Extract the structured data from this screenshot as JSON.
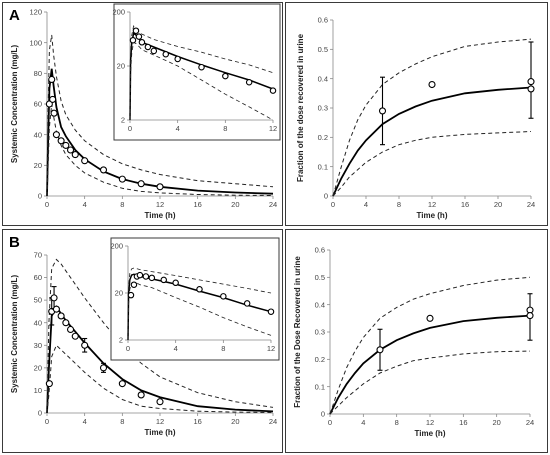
{
  "panels": [
    {
      "letter": "A"
    },
    {
      "letter": "B"
    }
  ],
  "chart_data": [
    {
      "id": "A-conc",
      "type": "line",
      "xlabel": "Time (h)",
      "ylabel": "Systemic Concentration (mg/L)",
      "xlim": [
        0,
        24
      ],
      "ylim": [
        0,
        120
      ],
      "xticks": [
        0,
        4,
        8,
        12,
        16,
        20,
        24
      ],
      "yticks": [
        0,
        20,
        40,
        60,
        80,
        100,
        120
      ],
      "grid": false,
      "series": [
        {
          "role": "observed",
          "style": "open-circle",
          "x": [
            0.25,
            0.5,
            0.6,
            0.75,
            1,
            1.5,
            2,
            2.5,
            3,
            4,
            6,
            8,
            10,
            12
          ],
          "y": [
            60,
            76,
            63,
            54,
            40,
            36,
            33,
            30,
            27,
            23,
            17,
            11,
            8,
            6
          ]
        },
        {
          "role": "median",
          "style": "solid",
          "x": [
            0,
            0.1,
            0.25,
            0.5,
            0.7,
            1,
            1.5,
            2,
            3,
            4,
            6,
            8,
            10,
            12,
            16,
            20,
            24
          ],
          "y": [
            0,
            30,
            70,
            83,
            72,
            58,
            45,
            39,
            30,
            24,
            16,
            11,
            8,
            6,
            3.5,
            2.3,
            1.5
          ]
        },
        {
          "role": "upper",
          "style": "dashed",
          "x": [
            0,
            0.1,
            0.25,
            0.5,
            0.7,
            1,
            1.5,
            2,
            3,
            4,
            6,
            8,
            10,
            12,
            16,
            20,
            24
          ],
          "y": [
            0,
            50,
            95,
            105,
            92,
            78,
            62,
            53,
            43,
            36,
            27,
            21,
            17,
            14,
            10,
            8,
            6
          ]
        },
        {
          "role": "lower",
          "style": "dashed",
          "x": [
            0,
            0.1,
            0.25,
            0.5,
            0.7,
            1,
            1.5,
            2,
            3,
            4,
            6,
            8,
            10,
            12,
            16,
            20,
            24
          ],
          "y": [
            0,
            15,
            45,
            60,
            52,
            42,
            33,
            27,
            20,
            15,
            9,
            5,
            3,
            2,
            1,
            0.5,
            0.3
          ]
        }
      ],
      "inset": {
        "yscale": "log",
        "xlim": [
          0,
          12
        ],
        "ylim": [
          2,
          200
        ],
        "xticks": [
          0,
          4,
          8,
          12
        ],
        "yticks": [
          2,
          20,
          200
        ],
        "series": [
          {
            "role": "observed",
            "style": "open-circle",
            "x": [
              0.25,
              0.5,
              0.75,
              1,
              1.5,
              2,
              3,
              4,
              6,
              8,
              10,
              12
            ],
            "y": [
              60,
              90,
              70,
              55,
              45,
              38,
              33,
              27,
              19,
              13,
              10,
              7
            ]
          },
          {
            "role": "median",
            "style": "solid",
            "x": [
              0,
              0.05,
              0.15,
              0.3,
              0.5,
              0.8,
              1,
              2,
              4,
              6,
              8,
              10,
              12
            ],
            "y": [
              2,
              25,
              55,
              80,
              75,
              62,
              55,
              45,
              30,
              21,
              15,
              11,
              7.5
            ]
          },
          {
            "role": "upper",
            "style": "dashed",
            "x": [
              0,
              0.05,
              0.15,
              0.3,
              0.5,
              0.8,
              1,
              2,
              4,
              6,
              8,
              10,
              12
            ],
            "y": [
              2,
              35,
              75,
              110,
              100,
              85,
              78,
              62,
              46,
              36,
              27,
              21,
              15
            ]
          },
          {
            "role": "lower",
            "style": "dashed",
            "x": [
              0,
              0.05,
              0.15,
              0.3,
              0.5,
              0.8,
              1,
              2,
              4,
              6,
              8,
              10,
              12
            ],
            "y": [
              2,
              15,
              35,
              55,
              52,
              45,
              40,
              32,
              20,
              11,
              6,
              3.5,
              2
            ]
          }
        ]
      }
    },
    {
      "id": "A-urine",
      "type": "line",
      "xlabel": "Time (h)",
      "ylabel": "Fraction of the dose recovered in urine",
      "xlim": [
        0,
        24
      ],
      "ylim": [
        0,
        0.6
      ],
      "xticks": [
        0,
        4,
        8,
        12,
        16,
        20,
        24
      ],
      "yticks": [
        0,
        0.1,
        0.2,
        0.3,
        0.4,
        0.5,
        0.6
      ],
      "grid": false,
      "series": [
        {
          "role": "observed",
          "style": "open-circle",
          "x": [
            6,
            12,
            24,
            24
          ],
          "y": [
            0.29,
            0.38,
            0.39,
            0.365
          ],
          "err_low": [
            0.175,
            null,
            0.265,
            null
          ],
          "err_high": [
            0.405,
            null,
            0.525,
            null
          ]
        },
        {
          "role": "median",
          "style": "solid",
          "x": [
            0,
            1,
            2,
            3,
            4,
            6,
            8,
            10,
            12,
            16,
            20,
            24
          ],
          "y": [
            0,
            0.06,
            0.11,
            0.155,
            0.19,
            0.245,
            0.28,
            0.305,
            0.325,
            0.35,
            0.362,
            0.37
          ]
        },
        {
          "role": "upper",
          "style": "dashed",
          "x": [
            0,
            1,
            2,
            3,
            4,
            6,
            8,
            10,
            12,
            16,
            20,
            24
          ],
          "y": [
            0,
            0.1,
            0.19,
            0.26,
            0.31,
            0.38,
            0.42,
            0.45,
            0.475,
            0.51,
            0.525,
            0.535
          ]
        },
        {
          "role": "lower",
          "style": "dashed",
          "x": [
            0,
            1,
            2,
            3,
            4,
            6,
            8,
            10,
            12,
            16,
            20,
            24
          ],
          "y": [
            0,
            0.03,
            0.065,
            0.09,
            0.115,
            0.15,
            0.175,
            0.19,
            0.2,
            0.21,
            0.215,
            0.22
          ]
        }
      ]
    },
    {
      "id": "B-conc",
      "type": "line",
      "xlabel": "Time (h)",
      "ylabel": "Systemic Concentration (mg/L)",
      "xlim": [
        0,
        24
      ],
      "ylim": [
        0,
        70
      ],
      "xticks": [
        0,
        4,
        8,
        12,
        16,
        20,
        24
      ],
      "yticks": [
        0,
        10,
        20,
        30,
        40,
        50,
        60,
        70
      ],
      "grid": false,
      "series": [
        {
          "role": "observed",
          "style": "open-circle",
          "x": [
            0.25,
            0.5,
            0.75,
            1,
            1.5,
            2,
            2.5,
            3,
            4,
            6,
            8,
            10,
            12
          ],
          "y": [
            13,
            45,
            51,
            46,
            43,
            40,
            37,
            34,
            30,
            20,
            13,
            8,
            5
          ],
          "err_low": [
            null,
            39,
            46,
            null,
            null,
            null,
            null,
            null,
            27,
            18,
            null,
            null,
            null
          ],
          "err_high": [
            null,
            51,
            56,
            null,
            null,
            null,
            null,
            null,
            33,
            22,
            null,
            null,
            null
          ]
        },
        {
          "role": "median",
          "style": "solid",
          "x": [
            0,
            0.2,
            0.5,
            1,
            1.5,
            2,
            3,
            4,
            6,
            8,
            10,
            12,
            16,
            20,
            24
          ],
          "y": [
            0,
            20,
            43,
            47,
            44,
            41,
            36,
            31,
            22,
            15,
            10,
            7,
            3,
            1.5,
            0.7
          ]
        },
        {
          "role": "upper",
          "style": "dashed",
          "x": [
            0,
            0.2,
            0.5,
            1,
            1.5,
            2,
            3,
            4,
            6,
            8,
            10,
            12,
            16,
            20,
            24
          ],
          "y": [
            0,
            40,
            64,
            68,
            66,
            63,
            57,
            51,
            40,
            30,
            22,
            16,
            9,
            5,
            2.5
          ]
        },
        {
          "role": "lower",
          "style": "dashed",
          "x": [
            0,
            0.2,
            0.5,
            1,
            1.5,
            2,
            3,
            4,
            6,
            8,
            10,
            12,
            16,
            20,
            24
          ],
          "y": [
            0,
            8,
            25,
            30,
            28,
            26,
            22,
            18,
            11,
            6,
            3,
            2,
            0.8,
            0.4,
            0.2
          ]
        }
      ],
      "inset": {
        "yscale": "log",
        "xlim": [
          0,
          12
        ],
        "ylim": [
          2,
          200
        ],
        "xticks": [
          0,
          4,
          8,
          12
        ],
        "yticks": [
          2,
          20,
          200
        ],
        "series": [
          {
            "role": "observed",
            "style": "open-circle",
            "x": [
              0.25,
              0.5,
              0.75,
              1,
              1.5,
              2,
              3,
              4,
              6,
              8,
              10,
              12
            ],
            "y": [
              18,
              30,
              45,
              48,
              45,
              42,
              38,
              33,
              24,
              17,
              12,
              8
            ]
          },
          {
            "role": "median",
            "style": "solid",
            "x": [
              0,
              0.05,
              0.15,
              0.3,
              0.5,
              0.8,
              1,
              2,
              4,
              6,
              8,
              10,
              12
            ],
            "y": [
              2,
              20,
              38,
              48,
              50,
              47,
              45,
              40,
              31,
              22,
              16,
              11,
              8
            ]
          },
          {
            "role": "upper",
            "style": "dashed",
            "x": [
              0,
              0.05,
              0.15,
              0.3,
              0.5,
              0.8,
              1,
              2,
              4,
              6,
              8,
              10,
              12
            ],
            "y": [
              2,
              28,
              52,
              65,
              68,
              65,
              63,
              57,
              47,
              38,
              31,
              25,
              20
            ]
          },
          {
            "role": "lower",
            "style": "dashed",
            "x": [
              0,
              0.05,
              0.15,
              0.3,
              0.5,
              0.8,
              1,
              2,
              4,
              6,
              8,
              10,
              12
            ],
            "y": [
              2,
              12,
              24,
              32,
              34,
              32,
              30,
              26,
              16,
              10,
              6,
              3.8,
              2.5
            ]
          }
        ]
      }
    },
    {
      "id": "B-urine",
      "type": "line",
      "xlabel": "Time (h)",
      "ylabel": "Fraction of the Dose Recovered in urine",
      "xlim": [
        0,
        24
      ],
      "ylim": [
        0,
        0.6
      ],
      "xticks": [
        0,
        4,
        8,
        12,
        16,
        20,
        24
      ],
      "yticks": [
        0,
        0.1,
        0.2,
        0.3,
        0.4,
        0.5,
        0.6
      ],
      "grid": false,
      "series": [
        {
          "role": "observed",
          "style": "open-circle",
          "x": [
            6,
            12,
            24,
            24
          ],
          "y": [
            0.235,
            0.35,
            0.38,
            0.36
          ],
          "err_low": [
            0.16,
            null,
            0.27,
            null
          ],
          "err_high": [
            0.31,
            null,
            0.44,
            null
          ]
        },
        {
          "role": "median",
          "style": "solid",
          "x": [
            0,
            1,
            2,
            3,
            4,
            6,
            8,
            10,
            12,
            16,
            20,
            24
          ],
          "y": [
            0,
            0.06,
            0.11,
            0.15,
            0.185,
            0.235,
            0.27,
            0.295,
            0.315,
            0.34,
            0.352,
            0.36
          ]
        },
        {
          "role": "upper",
          "style": "dashed",
          "x": [
            0,
            1,
            2,
            3,
            4,
            6,
            8,
            10,
            12,
            16,
            20,
            24
          ],
          "y": [
            0,
            0.09,
            0.17,
            0.23,
            0.28,
            0.35,
            0.39,
            0.42,
            0.44,
            0.47,
            0.49,
            0.5
          ]
        },
        {
          "role": "lower",
          "style": "dashed",
          "x": [
            0,
            1,
            2,
            3,
            4,
            6,
            8,
            10,
            12,
            16,
            20,
            24
          ],
          "y": [
            0,
            0.03,
            0.06,
            0.085,
            0.11,
            0.15,
            0.175,
            0.195,
            0.205,
            0.22,
            0.228,
            0.23
          ]
        }
      ]
    }
  ]
}
